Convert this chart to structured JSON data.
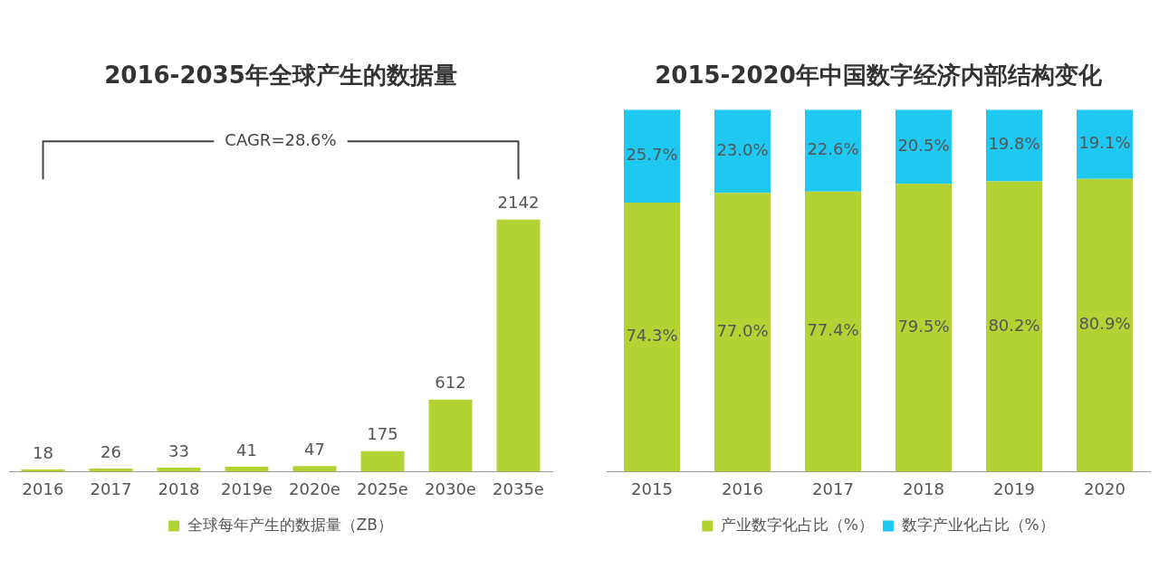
{
  "chart_data": [
    {
      "type": "bar",
      "title": "2016-2035年全球产生的数据量",
      "categories": [
        "2016",
        "2017",
        "2018",
        "2019e",
        "2020e",
        "2025e",
        "2030e",
        "2035e"
      ],
      "series": [
        {
          "name": "全球每年产生的数据量（ZB）",
          "color": "#b3d335",
          "values": [
            18,
            26,
            33,
            41,
            47,
            175,
            612,
            2142
          ]
        }
      ],
      "data_labels": true,
      "legend": "bottom",
      "tick_labels": "x",
      "annotations": [
        "CAGR=28.6%"
      ]
    },
    {
      "type": "bar",
      "title": "2015-2020年中国数字经济内部结构变化",
      "categories": [
        "2015",
        "2016",
        "2017",
        "2018",
        "2019",
        "2020"
      ],
      "stacked": true,
      "series": [
        {
          "name": "产业数字化占比（%）",
          "color": "#b3d335",
          "values": [
            74.3,
            77.0,
            77.4,
            79.5,
            80.2,
            80.9
          ],
          "value_labels": [
            "74.3%",
            "77.0%",
            "77.4%",
            "79.5%",
            "80.2%",
            "80.9%"
          ]
        },
        {
          "name": "数字产业化占比（%）",
          "color": "#1ec8f0",
          "values": [
            25.7,
            23.0,
            22.6,
            20.5,
            19.8,
            19.1
          ],
          "value_labels": [
            "25.7%",
            "23.0%",
            "22.6%",
            "20.5%",
            "19.8%",
            "19.1%"
          ]
        }
      ],
      "legend": "bottom",
      "tick_labels": "x"
    }
  ]
}
